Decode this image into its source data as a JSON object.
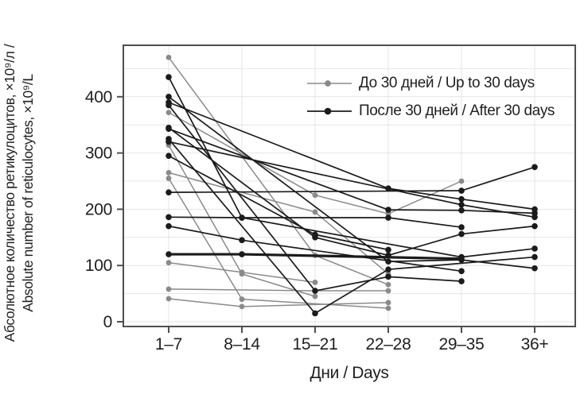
{
  "chart_data": {
    "type": "line",
    "title": "",
    "xlabel": "Дни / Days",
    "ylabel_line1": "Абсолютное количество ретикулоцитов, ×10⁹/л /",
    "ylabel_line2": "Absolute number of reticulocytes, ×10⁹/L",
    "categories": [
      "1–7",
      "8–14",
      "15–21",
      "22–28",
      "29–35",
      "36+"
    ],
    "y_ticks": [
      400,
      300,
      200,
      100,
      0
    ],
    "ylim": [
      -10,
      495
    ],
    "grid": {
      "show": true,
      "y_step": 50,
      "y_max": 450,
      "color": "#e4e4e4"
    },
    "axis_color": "#4f4f4f",
    "legend": {
      "position": "top-right",
      "entries": [
        {
          "label": "До 30 дней / Up to 30 days",
          "color": "#8a8a8a"
        },
        {
          "label": "После 30 дней / After 30 days",
          "color": "#1b1b1b"
        }
      ]
    },
    "series": [
      {
        "name": "До 30 дней / Up to 30 days",
        "color": "#8a8a8a",
        "marker_radius": 3.4,
        "line_width": 1.5,
        "lines": [
          {
            "values": [
              470,
              null,
              118,
              66,
              null,
              null
            ]
          },
          {
            "values": [
              372,
              null,
              225,
              192,
              250,
              null
            ]
          },
          {
            "values": [
              314,
              85,
              45,
              null,
              null,
              null
            ]
          },
          {
            "values": [
              265,
              null,
              195,
              85,
              null,
              null
            ]
          },
          {
            "values": [
              255,
              40,
              null,
              24,
              null,
              null
            ]
          },
          {
            "values": [
              105,
              88,
              70,
              null,
              null,
              null
            ]
          },
          {
            "values": [
              58,
              null,
              55,
              55,
              null,
              null
            ]
          },
          {
            "values": [
              41,
              27,
              null,
              34,
              null,
              null
            ]
          }
        ]
      },
      {
        "name": "После 30 дней / After 30 days",
        "color": "#1b1b1b",
        "marker_radius": 3.8,
        "line_width": 1.7,
        "lines": [
          {
            "values": [
              435,
              185,
              null,
              null,
              115,
              130
            ]
          },
          {
            "values": [
              400,
              null,
              null,
              107,
              110,
              95
            ]
          },
          {
            "values": [
              390,
              null,
              null,
              237,
              218,
              200
            ]
          },
          {
            "values": [
              385,
              null,
              55,
              80,
              72,
              null
            ]
          },
          {
            "values": [
              345,
              null,
              150,
              118,
              156,
              170
            ]
          },
          {
            "values": [
              343,
              null,
              null,
              199,
              198,
              193
            ]
          },
          {
            "values": [
              325,
              null,
              15,
              93,
              null,
              115
            ]
          },
          {
            "values": [
              320,
              null,
              null,
              null,
              208,
              186
            ]
          },
          {
            "values": [
              295,
              null,
              155,
              128,
              null,
              null
            ]
          },
          {
            "values": [
              230,
              null,
              null,
              null,
              233,
              275
            ]
          },
          {
            "values": [
              186,
              185,
              null,
              185,
              168,
              null
            ]
          },
          {
            "values": [
              170,
              145,
              null,
              null,
              90,
              null
            ]
          },
          {
            "values": [
              120,
              120,
              null,
              null,
              112,
              null
            ],
            "line_width": 3.2
          }
        ]
      }
    ]
  }
}
